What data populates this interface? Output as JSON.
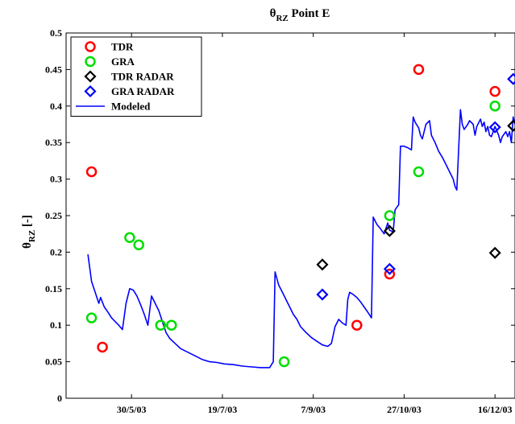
{
  "chart_data": {
    "type": "scatter",
    "title": {
      "main": "θ",
      "sub": "RZ",
      "rest": " Point E"
    },
    "ylabel": {
      "main": "θ",
      "sub": "RZ",
      "rest": " [-]"
    },
    "xlabel": "",
    "xlim": [
      "2003-04-24",
      "2003-12-27"
    ],
    "ylim": [
      0,
      0.5
    ],
    "yticks": [
      0,
      0.05,
      0.1,
      0.15,
      0.2,
      0.25,
      0.3,
      0.35,
      0.4,
      0.45,
      0.5
    ],
    "ytick_labels": [
      "0",
      "0.05",
      "0.1",
      "0.15",
      "0.2",
      "0.25",
      "0.3",
      "0.35",
      "0.4",
      "0.45",
      "0.5"
    ],
    "xticks": [
      "2003-05-30",
      "2003-07-19",
      "2003-09-07",
      "2003-10-27",
      "2003-12-16"
    ],
    "xtick_labels": [
      "30/5/03",
      "19/7/03",
      "7/9/03",
      "27/10/03",
      "16/12/03"
    ],
    "legend_position": "top-left",
    "colors": {
      "tdr": "#ff0000",
      "gra": "#00dd00",
      "tdr_radar": "#000000",
      "gra_radar": "#0000ff",
      "modeled": "#0000ff"
    },
    "series": [
      {
        "name": "TDR",
        "marker": "circle",
        "color": "#ff0000",
        "points": [
          [
            "2003-05-08",
            0.31
          ],
          [
            "2003-05-14",
            0.07
          ],
          [
            "2003-10-01",
            0.1
          ],
          [
            "2003-10-19",
            0.17
          ],
          [
            "2003-11-04",
            0.45
          ],
          [
            "2003-12-16",
            0.42
          ]
        ]
      },
      {
        "name": "GRA",
        "marker": "circle",
        "color": "#00dd00",
        "points": [
          [
            "2003-05-08",
            0.11
          ],
          [
            "2003-05-29",
            0.22
          ],
          [
            "2003-06-03",
            0.21
          ],
          [
            "2003-06-15",
            0.1
          ],
          [
            "2003-06-21",
            0.1
          ],
          [
            "2003-08-22",
            0.05
          ],
          [
            "2003-10-19",
            0.25
          ],
          [
            "2003-11-04",
            0.31
          ],
          [
            "2003-12-16",
            0.4
          ]
        ]
      },
      {
        "name": "TDR RADAR",
        "marker": "diamond",
        "color": "#000000",
        "points": [
          [
            "2003-09-12",
            0.183
          ],
          [
            "2003-10-19",
            0.229
          ],
          [
            "2003-12-16",
            0.199
          ],
          [
            "2003-12-26",
            0.373
          ]
        ]
      },
      {
        "name": "GRA RADAR",
        "marker": "diamond",
        "color": "#0000ff",
        "points": [
          [
            "2003-09-12",
            0.142
          ],
          [
            "2003-10-19",
            0.177
          ],
          [
            "2003-12-16",
            0.371
          ],
          [
            "2003-12-26",
            0.437
          ]
        ]
      },
      {
        "name": "Modeled",
        "marker": "line",
        "color": "#0000ff",
        "points": [
          [
            "2003-05-06",
            0.197
          ],
          [
            "2003-05-08",
            0.16
          ],
          [
            "2003-05-10",
            0.145
          ],
          [
            "2003-05-12",
            0.13
          ],
          [
            "2003-05-13",
            0.138
          ],
          [
            "2003-05-15",
            0.125
          ],
          [
            "2003-05-17",
            0.118
          ],
          [
            "2003-05-19",
            0.11
          ],
          [
            "2003-05-21",
            0.105
          ],
          [
            "2003-05-23",
            0.1
          ],
          [
            "2003-05-25",
            0.094
          ],
          [
            "2003-05-27",
            0.13
          ],
          [
            "2003-05-29",
            0.15
          ],
          [
            "2003-05-31",
            0.148
          ],
          [
            "2003-06-02",
            0.14
          ],
          [
            "2003-06-04",
            0.128
          ],
          [
            "2003-06-06",
            0.115
          ],
          [
            "2003-06-08",
            0.1
          ],
          [
            "2003-06-10",
            0.14
          ],
          [
            "2003-06-12",
            0.13
          ],
          [
            "2003-06-14",
            0.12
          ],
          [
            "2003-06-16",
            0.105
          ],
          [
            "2003-06-18",
            0.09
          ],
          [
            "2003-06-20",
            0.082
          ],
          [
            "2003-06-23",
            0.075
          ],
          [
            "2003-06-26",
            0.068
          ],
          [
            "2003-06-30",
            0.063
          ],
          [
            "2003-07-04",
            0.058
          ],
          [
            "2003-07-08",
            0.053
          ],
          [
            "2003-07-12",
            0.05
          ],
          [
            "2003-07-16",
            0.049
          ],
          [
            "2003-07-20",
            0.047
          ],
          [
            "2003-07-25",
            0.046
          ],
          [
            "2003-07-30",
            0.044
          ],
          [
            "2003-08-04",
            0.043
          ],
          [
            "2003-08-09",
            0.042
          ],
          [
            "2003-08-14",
            0.042
          ],
          [
            "2003-08-16",
            0.05
          ],
          [
            "2003-08-17",
            0.173
          ],
          [
            "2003-08-19",
            0.155
          ],
          [
            "2003-08-21",
            0.145
          ],
          [
            "2003-08-23",
            0.135
          ],
          [
            "2003-08-25",
            0.125
          ],
          [
            "2003-08-27",
            0.115
          ],
          [
            "2003-08-29",
            0.108
          ],
          [
            "2003-08-31",
            0.098
          ],
          [
            "2003-09-03",
            0.09
          ],
          [
            "2003-09-06",
            0.083
          ],
          [
            "2003-09-09",
            0.078
          ],
          [
            "2003-09-12",
            0.073
          ],
          [
            "2003-09-15",
            0.071
          ],
          [
            "2003-09-17",
            0.075
          ],
          [
            "2003-09-19",
            0.098
          ],
          [
            "2003-09-21",
            0.108
          ],
          [
            "2003-09-23",
            0.103
          ],
          [
            "2003-09-25",
            0.1
          ],
          [
            "2003-09-26",
            0.135
          ],
          [
            "2003-09-27",
            0.145
          ],
          [
            "2003-09-29",
            0.142
          ],
          [
            "2003-10-01",
            0.138
          ],
          [
            "2003-10-03",
            0.132
          ],
          [
            "2003-10-05",
            0.125
          ],
          [
            "2003-10-07",
            0.118
          ],
          [
            "2003-10-09",
            0.11
          ],
          [
            "2003-10-10",
            0.248
          ],
          [
            "2003-10-12",
            0.238
          ],
          [
            "2003-10-14",
            0.232
          ],
          [
            "2003-10-16",
            0.225
          ],
          [
            "2003-10-18",
            0.24
          ],
          [
            "2003-10-19",
            0.23
          ],
          [
            "2003-10-21",
            0.228
          ],
          [
            "2003-10-22",
            0.258
          ],
          [
            "2003-10-24",
            0.265
          ],
          [
            "2003-10-25",
            0.345
          ],
          [
            "2003-10-27",
            0.345
          ],
          [
            "2003-10-29",
            0.343
          ],
          [
            "2003-10-31",
            0.34
          ],
          [
            "2003-11-01",
            0.385
          ],
          [
            "2003-11-02",
            0.378
          ],
          [
            "2003-11-04",
            0.37
          ],
          [
            "2003-11-05",
            0.36
          ],
          [
            "2003-11-06",
            0.355
          ],
          [
            "2003-11-08",
            0.375
          ],
          [
            "2003-11-10",
            0.38
          ],
          [
            "2003-11-11",
            0.36
          ],
          [
            "2003-11-13",
            0.35
          ],
          [
            "2003-11-15",
            0.338
          ],
          [
            "2003-11-17",
            0.33
          ],
          [
            "2003-11-19",
            0.32
          ],
          [
            "2003-11-21",
            0.31
          ],
          [
            "2003-11-23",
            0.3
          ],
          [
            "2003-11-24",
            0.29
          ],
          [
            "2003-11-25",
            0.285
          ],
          [
            "2003-11-27",
            0.395
          ],
          [
            "2003-11-28",
            0.375
          ],
          [
            "2003-11-29",
            0.368
          ],
          [
            "2003-12-01",
            0.375
          ],
          [
            "2003-12-02",
            0.38
          ],
          [
            "2003-12-04",
            0.375
          ],
          [
            "2003-12-05",
            0.36
          ],
          [
            "2003-12-06",
            0.372
          ],
          [
            "2003-12-08",
            0.382
          ],
          [
            "2003-12-09",
            0.372
          ],
          [
            "2003-12-10",
            0.378
          ],
          [
            "2003-12-11",
            0.365
          ],
          [
            "2003-12-12",
            0.372
          ],
          [
            "2003-12-13",
            0.36
          ],
          [
            "2003-12-14",
            0.358
          ],
          [
            "2003-12-16",
            0.372
          ],
          [
            "2003-12-18",
            0.36
          ],
          [
            "2003-12-19",
            0.35
          ],
          [
            "2003-12-20",
            0.358
          ],
          [
            "2003-12-22",
            0.365
          ],
          [
            "2003-12-23",
            0.358
          ],
          [
            "2003-12-24",
            0.365
          ],
          [
            "2003-12-25",
            0.35
          ],
          [
            "2003-12-26",
            0.385
          ],
          [
            "2003-12-27",
            0.375
          ]
        ]
      }
    ]
  }
}
